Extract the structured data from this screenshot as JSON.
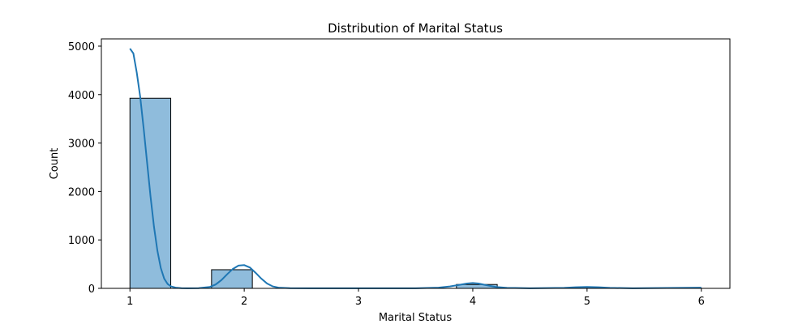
{
  "chart_data": {
    "type": "bar",
    "title": "Distribution of Marital Status",
    "xlabel": "Marital Status",
    "ylabel": "Count",
    "xlim": [
      0.75,
      6.25
    ],
    "ylim": [
      0,
      5150
    ],
    "x_ticks": [
      1,
      2,
      3,
      4,
      5,
      6
    ],
    "y_ticks": [
      0,
      1000,
      2000,
      3000,
      4000,
      5000
    ],
    "bins": [
      {
        "x0": 1.0,
        "x1": 1.357,
        "count": 3925
      },
      {
        "x0": 1.714,
        "x1": 2.071,
        "count": 385
      },
      {
        "x0": 3.857,
        "x1": 4.214,
        "count": 80
      },
      {
        "x0": 4.929,
        "x1": 5.286,
        "count": 3
      },
      {
        "x0": 5.643,
        "x1": 6.0,
        "count": 3
      }
    ],
    "kde": {
      "x": [
        1.0,
        1.03,
        1.06,
        1.09,
        1.12,
        1.15,
        1.18,
        1.21,
        1.24,
        1.27,
        1.3,
        1.33,
        1.36,
        1.4,
        1.45,
        1.5,
        1.6,
        1.7,
        1.75,
        1.8,
        1.85,
        1.9,
        1.95,
        2.0,
        2.05,
        2.1,
        2.15,
        2.2,
        2.25,
        2.3,
        2.4,
        2.6,
        3.0,
        3.5,
        3.7,
        3.8,
        3.9,
        3.95,
        4.0,
        4.05,
        4.1,
        4.2,
        4.3,
        4.5,
        4.8,
        4.9,
        5.0,
        5.1,
        5.2,
        5.4,
        5.8,
        6.0
      ],
      "y": [
        4950,
        4850,
        4450,
        3950,
        3300,
        2600,
        1900,
        1280,
        780,
        420,
        200,
        90,
        40,
        15,
        5,
        3,
        5,
        30,
        80,
        170,
        290,
        400,
        470,
        480,
        430,
        320,
        200,
        100,
        40,
        15,
        4,
        2,
        2,
        3,
        15,
        40,
        80,
        100,
        110,
        100,
        75,
        30,
        10,
        3,
        10,
        22,
        30,
        22,
        10,
        3,
        10,
        15
      ]
    },
    "bar_color": "#8fbcdc",
    "bar_edge_color": "#000000",
    "kde_color": "#1f77b4",
    "grid": false,
    "legend": "none"
  }
}
